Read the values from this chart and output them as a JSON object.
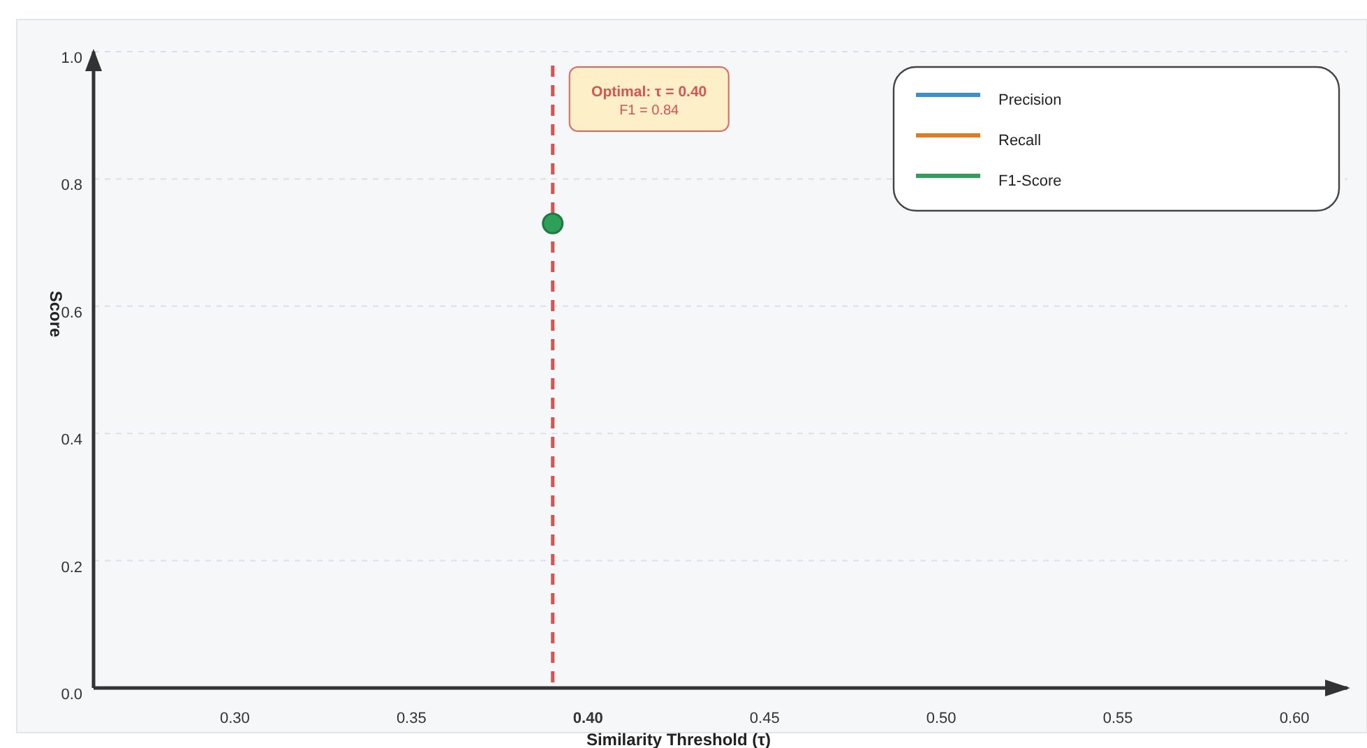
{
  "chart_data": {
    "type": "scatter",
    "xlabel": "Similarity Threshold (τ)",
    "ylabel": "Score",
    "xlim": [
      0.26,
      0.615
    ],
    "ylim": [
      0,
      1
    ],
    "xticks": [
      {
        "value": 0.3,
        "label": "0.30"
      },
      {
        "value": 0.35,
        "label": "0.35"
      },
      {
        "value": 0.4,
        "label": "0.40"
      },
      {
        "value": 0.45,
        "label": "0.45"
      },
      {
        "value": 0.5,
        "label": "0.50"
      },
      {
        "value": 0.55,
        "label": "0.55"
      },
      {
        "value": 0.6,
        "label": "0.60"
      }
    ],
    "yticks": [
      {
        "value": 0,
        "label": "0.0"
      },
      {
        "value": 0.2,
        "label": "0.2"
      },
      {
        "value": 0.4,
        "label": "0.4"
      },
      {
        "value": 0.6,
        "label": "0.6"
      },
      {
        "value": 0.8,
        "label": "0.8"
      },
      {
        "value": 1,
        "label": "1.0"
      }
    ],
    "grid": "y",
    "legend": "top right",
    "series": [
      {
        "type": "line",
        "name": "Precision",
        "color": "#3a8fd1"
      },
      {
        "type": "line",
        "name": "Recall",
        "color": "#e07b24"
      },
      {
        "type": "line",
        "name": "F1-Score",
        "color": "#2ea05a"
      },
      {
        "color": "#2ea05a",
        "marker": "circle",
        "x": [
          0.39
        ],
        "values": [
          0.73
        ]
      }
    ],
    "ref_lines": [
      {
        "axis": "x",
        "value": 0.39,
        "color": "#d9534f",
        "line_style": "dashed"
      }
    ],
    "annotations": [
      "Optimal: τ = 0.40",
      "F1 = 0.84"
    ]
  }
}
